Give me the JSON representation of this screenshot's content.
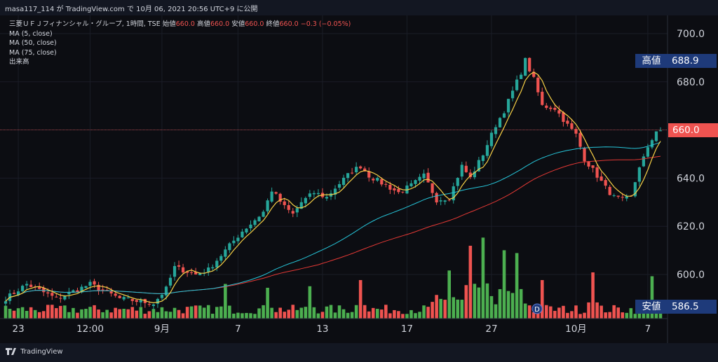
{
  "header": {
    "publish_line": "masa117_114 が TradingView.com で 10月 06, 2021 20:56 UTC+9 に公開"
  },
  "legend": {
    "symbol_line": "三菱ＵＦＪフィナンシャル・グループ, 1時間, TSE",
    "open_label": "始値",
    "open_value": "660.0",
    "high_label": "高値",
    "high_value": "660.0",
    "low_label": "安値",
    "low_value": "660.0",
    "close_label": "終値",
    "close_value": "660.0",
    "change": "−0.3 (−0.05%)",
    "ma5": "MA (5, close)",
    "ma50": "MA (50, close)",
    "ma75": "MA (75, close)",
    "volume": "出来高"
  },
  "tags": {
    "high_label": "高値",
    "high_value": "688.9",
    "last_value": "660.0",
    "low_label": "安値",
    "low_value": "586.5"
  },
  "dividend_marker": "D",
  "footer": {
    "logo_text": "TradingView"
  },
  "colors": {
    "up": "#26a69a",
    "down": "#ef5350",
    "vol_up": "#4caf50",
    "vol_down": "#ef5350",
    "ma5": "#f7d046",
    "ma50": "#26c6da",
    "ma75": "#e53935",
    "tag": "#1e3a7a"
  },
  "chart_data": {
    "type": "candlestick",
    "y_ticks": [
      "700.0",
      "680.0",
      "660.0",
      "640.0",
      "620.0",
      "600.0"
    ],
    "y_tick_values": [
      700,
      680,
      660,
      640,
      620,
      600
    ],
    "ylim": [
      583,
      706
    ],
    "x_ticks": [
      "23",
      "12:00",
      "9月",
      "7",
      "13",
      "17",
      "27",
      "10月",
      "7"
    ],
    "x_tick_index": [
      3,
      20,
      37,
      55,
      75,
      95,
      115,
      135,
      152
    ],
    "bar_count": 156,
    "anchors": [
      [
        0,
        590
      ],
      [
        5,
        596
      ],
      [
        12,
        590
      ],
      [
        20,
        596
      ],
      [
        27,
        590
      ],
      [
        35,
        588
      ],
      [
        38,
        594
      ],
      [
        40,
        603
      ],
      [
        45,
        600
      ],
      [
        48,
        602
      ],
      [
        53,
        612
      ],
      [
        56,
        618
      ],
      [
        58,
        621
      ],
      [
        61,
        626
      ],
      [
        63,
        635
      ],
      [
        66,
        628
      ],
      [
        68,
        625
      ],
      [
        70,
        630
      ],
      [
        73,
        634
      ],
      [
        76,
        632
      ],
      [
        78,
        636
      ],
      [
        82,
        643
      ],
      [
        84,
        645
      ],
      [
        86,
        641
      ],
      [
        90,
        637
      ],
      [
        93,
        634
      ],
      [
        96,
        637
      ],
      [
        99,
        641
      ],
      [
        102,
        631
      ],
      [
        105,
        632
      ],
      [
        108,
        645
      ],
      [
        110,
        640
      ],
      [
        113,
        650
      ],
      [
        116,
        662
      ],
      [
        118,
        668
      ],
      [
        120,
        676
      ],
      [
        122,
        684
      ],
      [
        123,
        689
      ],
      [
        125,
        681
      ],
      [
        127,
        670
      ],
      [
        130,
        669
      ],
      [
        133,
        662
      ],
      [
        135,
        658
      ],
      [
        137,
        648
      ],
      [
        140,
        641
      ],
      [
        142,
        636
      ],
      [
        144,
        632
      ],
      [
        146,
        631
      ],
      [
        148,
        632
      ],
      [
        150,
        645
      ],
      [
        152,
        652
      ],
      [
        154,
        660
      ],
      [
        155,
        660
      ]
    ],
    "ma5_hint": "5-period moving average of close",
    "ma50_hint": "50-period moving average of close",
    "ma75_hint": "75-period moving average of close",
    "volume_peaks": [
      [
        52,
        0.45
      ],
      [
        62,
        0.4
      ],
      [
        72,
        0.42
      ],
      [
        84,
        0.5
      ],
      [
        105,
        0.55
      ],
      [
        110,
        0.88
      ],
      [
        113,
        1.0
      ],
      [
        118,
        0.75
      ],
      [
        121,
        0.72
      ],
      [
        127,
        0.5
      ],
      [
        139,
        0.6
      ],
      [
        153,
        0.55
      ]
    ]
  }
}
